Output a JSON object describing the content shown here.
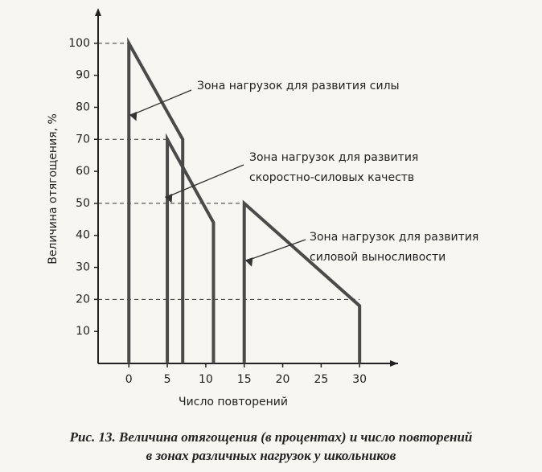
{
  "chart_data": {
    "type": "zones",
    "ylabel": "Величина отягощения, %",
    "xlabel": "Число повторений",
    "caption": [
      "Рис. 13. Величина отягощения (в процентах) и число повторений",
      "в зонах различных нагрузок у школьников"
    ],
    "xlim": [
      -4,
      35
    ],
    "ylim": [
      0,
      110
    ],
    "xticks": [
      0,
      5,
      10,
      15,
      20,
      25,
      30
    ],
    "yticks": [
      10,
      20,
      30,
      40,
      50,
      60,
      70,
      80,
      90,
      100
    ],
    "reference_lines": [
      100,
      70,
      50,
      20
    ],
    "color": "#4a4a4a",
    "zones": [
      {
        "label": [
          "Зона нагрузок для развития силы"
        ],
        "x": [
          0,
          0,
          7,
          7
        ],
        "y": [
          0,
          100,
          70,
          0
        ]
      },
      {
        "label": [
          "Зона нагрузок для развития",
          "скоростно-силовых качеств"
        ],
        "x": [
          5,
          5,
          11,
          11
        ],
        "y": [
          0,
          70,
          44,
          0
        ]
      },
      {
        "label": [
          "Зона нагрузок для развития",
          "силовой выносливости"
        ],
        "x": [
          15,
          15,
          30,
          30
        ],
        "y": [
          0,
          50,
          18,
          0
        ]
      }
    ]
  }
}
